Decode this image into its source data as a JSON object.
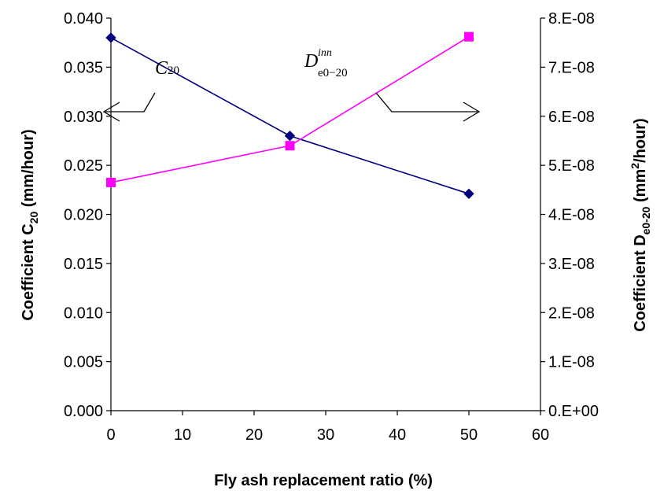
{
  "chart_data": {
    "type": "line",
    "title": "",
    "x": [
      0,
      25,
      50
    ],
    "xlim": [
      0,
      60
    ],
    "x_ticks": [
      "0",
      "10",
      "20",
      "30",
      "40",
      "50",
      "60"
    ],
    "xlabel": "Fly ash replacement ratio (%)",
    "ylabel_left": {
      "prefix": "Coefficient C",
      "sub": "20",
      "suffix": " (mm/hour)"
    },
    "ylabel_right": {
      "prefix": "Coefficient D",
      "sub": "e0-20",
      "mid": " (mm",
      "sup": "2",
      "suffix": "/hour)"
    },
    "ylim_left": [
      0,
      0.04
    ],
    "ylim_right": [
      0,
      8e-08
    ],
    "y_ticks_left": [
      "0.000",
      "0.005",
      "0.010",
      "0.015",
      "0.020",
      "0.025",
      "0.030",
      "0.035",
      "0.040"
    ],
    "y_ticks_right": [
      "0.E+00",
      "1.E-08",
      "2.E-08",
      "3.E-08",
      "4.E-08",
      "5.E-08",
      "6.E-08",
      "7.E-08",
      "8.E-08"
    ],
    "grid": false,
    "series": [
      {
        "axis": "left",
        "marker": "diamond",
        "color": "#000080",
        "values": [
          0.038,
          0.028,
          0.0221
        ]
      },
      {
        "axis": "right",
        "marker": "square",
        "color": "#FF00FF",
        "values": [
          4.65e-08,
          5.4e-08,
          7.62e-08
        ]
      }
    ],
    "annotations": {
      "c20": {
        "main": "C",
        "sub": "20"
      },
      "d": {
        "main": "D",
        "sup": "inn",
        "sub": "e0−20"
      }
    }
  }
}
